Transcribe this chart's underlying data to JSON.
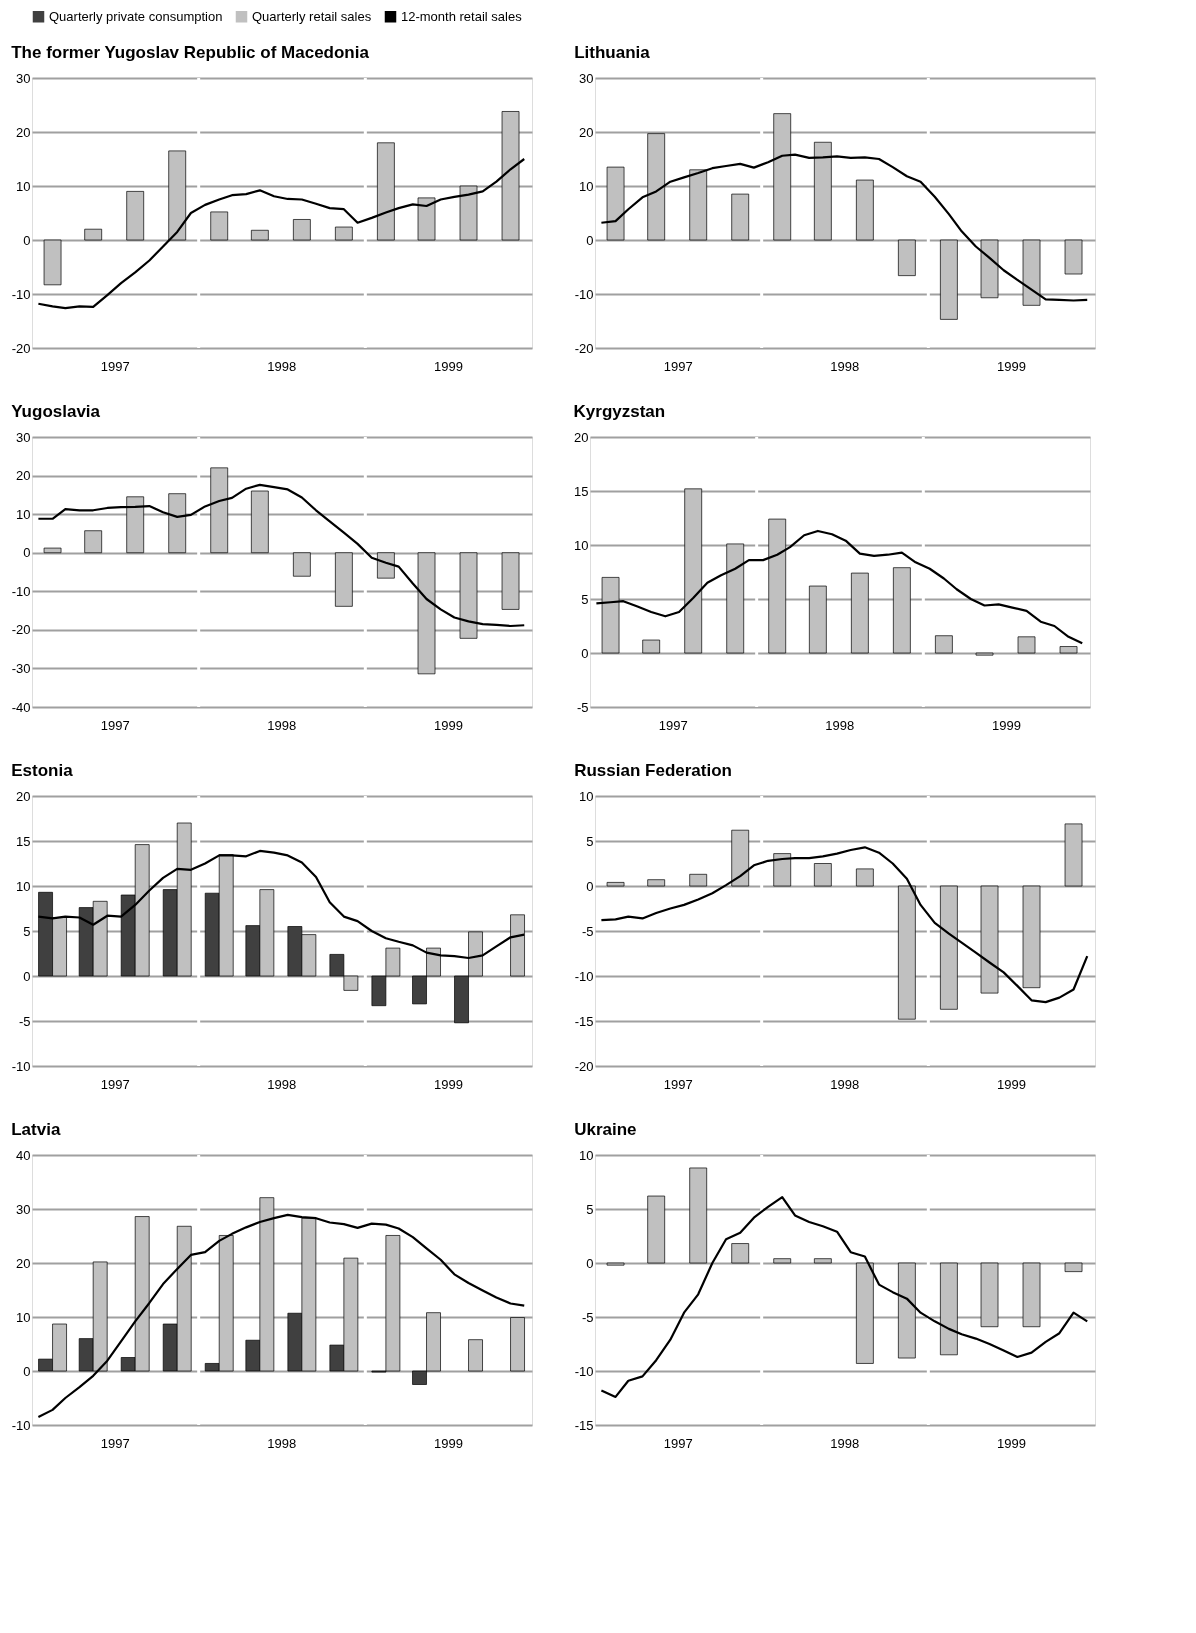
{
  "chart_data": [
    {
      "type": "bar",
      "title": "The former Yugoslav Republic of Macedonia",
      "legend": "top",
      "grid": "y",
      "xlim": [
        "1997-01-01",
        "2000-01-01"
      ],
      "xticks": [
        {
          "value": "1997-07-01",
          "label": "1997"
        },
        {
          "value": "1998-07-01",
          "label": "1998"
        },
        {
          "value": "1999-07-01",
          "label": "1999"
        }
      ],
      "ylim": [
        -20,
        30
      ],
      "yticks": [
        -20,
        -10,
        0,
        10,
        20,
        30
      ],
      "ref_lines": [
        {
          "axis": "x",
          "value": "1998-01-01",
          "color": "#ffffff"
        },
        {
          "axis": "x",
          "value": "1999-01-01",
          "color": "#ffffff"
        }
      ],
      "series": [
        {
          "name": "Quarterly retail sales",
          "color": "#c0c0c0",
          "x": [
            "1997-02-15",
            "1997-05-15",
            "1997-08-15",
            "1997-11-15",
            "1998-02-15",
            "1998-05-15",
            "1998-08-15",
            "1998-11-15",
            "1999-02-15",
            "1999-05-15",
            "1999-08-15",
            "1999-11-15"
          ],
          "values": [
            -8.3,
            2,
            9,
            16.5,
            5.2,
            1.8,
            3.8,
            2.4,
            18,
            7.8,
            10,
            23.8
          ]
        },
        {
          "name": "12-month retail sales",
          "type": "line",
          "color": "#000000",
          "x": [
            "1997-01-15",
            "1997-02-15",
            "1997-03-15",
            "1997-04-15",
            "1997-05-15",
            "1997-06-15",
            "1997-07-15",
            "1997-08-15",
            "1997-09-15",
            "1997-10-15",
            "1997-11-15",
            "1997-12-15",
            "1998-01-15",
            "1998-02-15",
            "1998-03-15",
            "1998-04-15",
            "1998-05-15",
            "1998-06-15",
            "1998-07-15",
            "1998-08-15",
            "1998-09-15",
            "1998-10-15",
            "1998-11-15",
            "1998-12-15",
            "1999-01-15",
            "1999-02-15",
            "1999-03-15",
            "1999-04-15",
            "1999-05-15",
            "1999-06-15",
            "1999-07-15",
            "1999-08-15",
            "1999-09-15",
            "1999-10-15",
            "1999-11-15",
            "1999-12-15"
          ],
          "values": [
            -11.8,
            -12.3,
            -12.6,
            -12.3,
            -12.4,
            -10.2,
            -8,
            -6,
            -3.8,
            -1.2,
            1.5,
            5,
            6.5,
            7.5,
            8.3,
            8.5,
            9.2,
            8.1,
            7.6,
            7.5,
            6.7,
            5.9,
            5.7,
            3.2,
            4.1,
            5.1,
            5.9,
            6.6,
            6.3,
            7.5,
            8,
            8.4,
            9,
            10.8,
            13.1,
            15
          ]
        }
      ]
    },
    {
      "type": "bar",
      "title": "Lithuania",
      "grid": "y",
      "xlim": [
        "1997-01-01",
        "2000-01-01"
      ],
      "xticks": [
        {
          "value": "1997-07-01",
          "label": "1997"
        },
        {
          "value": "1998-07-01",
          "label": "1998"
        },
        {
          "value": "1999-07-01",
          "label": "1999"
        }
      ],
      "ylim": [
        -20,
        30
      ],
      "yticks": [
        -20,
        -10,
        0,
        10,
        20,
        30
      ],
      "ref_lines": [
        {
          "axis": "x",
          "value": "1998-01-01",
          "color": "#ffffff"
        },
        {
          "axis": "x",
          "value": "1999-01-01",
          "color": "#ffffff"
        }
      ],
      "series": [
        {
          "name": "Quarterly retail sales",
          "color": "#c0c0c0",
          "x": [
            "1997-02-15",
            "1997-05-15",
            "1997-08-15",
            "1997-11-15",
            "1998-02-15",
            "1998-05-15",
            "1998-08-15",
            "1998-11-15",
            "1999-02-15",
            "1999-05-15",
            "1999-08-15",
            "1999-11-15"
          ],
          "values": [
            13.5,
            19.7,
            13,
            8.5,
            23.4,
            18.1,
            11.1,
            -6.6,
            -14.7,
            -10.7,
            -12.1,
            -6.3
          ]
        },
        {
          "name": "12-month retail sales",
          "type": "line",
          "color": "#000000",
          "x": [
            "1997-01-15",
            "1997-02-15",
            "1997-03-15",
            "1997-04-15",
            "1997-05-15",
            "1997-06-15",
            "1997-07-15",
            "1997-08-15",
            "1997-09-15",
            "1997-10-15",
            "1997-11-15",
            "1997-12-15",
            "1998-01-15",
            "1998-02-15",
            "1998-03-15",
            "1998-04-15",
            "1998-05-15",
            "1998-06-15",
            "1998-07-15",
            "1998-08-15",
            "1998-09-15",
            "1998-10-15",
            "1998-11-15",
            "1998-12-15",
            "1999-01-15",
            "1999-02-15",
            "1999-03-15",
            "1999-04-15",
            "1999-05-15",
            "1999-06-15",
            "1999-07-15",
            "1999-08-15",
            "1999-09-15",
            "1999-10-15",
            "1999-11-15",
            "1999-12-15"
          ],
          "values": [
            3.2,
            3.5,
            5.7,
            7.9,
            9,
            10.8,
            11.6,
            12.4,
            13.3,
            13.7,
            14.1,
            13.4,
            14.4,
            15.6,
            15.8,
            15.2,
            15.3,
            15.5,
            15.2,
            15.3,
            15,
            13.5,
            11.8,
            10.8,
            8,
            4.8,
            1.6,
            -1.2,
            -3.3,
            -5.6,
            -7.4,
            -9.2,
            -11,
            -11.1,
            -11.2,
            -11.1
          ]
        }
      ]
    },
    {
      "type": "bar",
      "title": "Yugoslavia",
      "grid": "y",
      "xlim": [
        "1997-01-01",
        "2000-01-01"
      ],
      "xticks": [
        {
          "value": "1997-07-01",
          "label": "1997"
        },
        {
          "value": "1998-07-01",
          "label": "1998"
        },
        {
          "value": "1999-07-01",
          "label": "1999"
        }
      ],
      "ylim": [
        -40,
        30
      ],
      "yticks": [
        -40,
        -30,
        -20,
        -10,
        0,
        10,
        20,
        30
      ],
      "ref_lines": [
        {
          "axis": "x",
          "value": "1998-01-01",
          "color": "#ffffff"
        },
        {
          "axis": "x",
          "value": "1999-01-01",
          "color": "#ffffff"
        }
      ],
      "series": [
        {
          "name": "Quarterly retail sales",
          "color": "#c0c0c0",
          "x": [
            "1997-02-15",
            "1997-05-15",
            "1997-08-15",
            "1997-11-15",
            "1998-02-15",
            "1998-05-15",
            "1998-08-15",
            "1998-11-15",
            "1999-02-15",
            "1999-05-15",
            "1999-08-15",
            "1999-11-15"
          ],
          "values": [
            1.2,
            5.7,
            14.5,
            15.3,
            22,
            16,
            -6.1,
            -13.9,
            -6.6,
            -31.4,
            -22.2,
            -14.7
          ]
        },
        {
          "name": "12-month retail sales",
          "type": "line",
          "color": "#000000",
          "x": [
            "1997-01-15",
            "1997-02-15",
            "1997-03-15",
            "1997-04-15",
            "1997-05-15",
            "1997-06-15",
            "1997-07-15",
            "1997-08-15",
            "1997-09-15",
            "1997-10-15",
            "1997-11-15",
            "1997-12-15",
            "1998-01-15",
            "1998-02-15",
            "1998-03-15",
            "1998-04-15",
            "1998-05-15",
            "1998-06-15",
            "1998-07-15",
            "1998-08-15",
            "1998-09-15",
            "1998-10-15",
            "1998-11-15",
            "1998-12-15",
            "1999-01-15",
            "1999-02-15",
            "1999-03-15",
            "1999-04-15",
            "1999-05-15",
            "1999-06-15",
            "1999-07-15",
            "1999-08-15",
            "1999-09-15",
            "1999-10-15",
            "1999-11-15",
            "1999-12-15"
          ],
          "values": [
            8.8,
            8.8,
            11.3,
            11,
            11,
            11.6,
            11.8,
            11.9,
            12.1,
            10.5,
            9.3,
            9.8,
            12,
            13.4,
            14.2,
            16.6,
            17.6,
            17,
            16.4,
            14.3,
            11,
            8.1,
            5.2,
            2.3,
            -1.3,
            -2.6,
            -3.6,
            -8,
            -12,
            -14.7,
            -16.8,
            -17.8,
            -18.5,
            -18.7,
            -19,
            -18.8
          ]
        }
      ]
    },
    {
      "type": "bar",
      "title": "Kyrgyzstan",
      "grid": "y",
      "xlim": [
        "1997-01-01",
        "2000-01-01"
      ],
      "xticks": [
        {
          "value": "1997-07-01",
          "label": "1997"
        },
        {
          "value": "1998-07-01",
          "label": "1998"
        },
        {
          "value": "1999-07-01",
          "label": "1999"
        }
      ],
      "ylim": [
        -5,
        20
      ],
      "yticks": [
        -5,
        0,
        5,
        10,
        15,
        20
      ],
      "ref_lines": [
        {
          "axis": "x",
          "value": "1998-01-01",
          "color": "#ffffff"
        },
        {
          "axis": "x",
          "value": "1999-01-01",
          "color": "#ffffff"
        }
      ],
      "series": [
        {
          "name": "Quarterly retail sales",
          "color": "#c0c0c0",
          "x": [
            "1997-02-15",
            "1997-05-15",
            "1997-08-15",
            "1997-11-15",
            "1998-02-15",
            "1998-05-15",
            "1998-08-15",
            "1998-11-15",
            "1999-02-15",
            "1999-05-15",
            "1999-08-15",
            "1999-11-15"
          ],
          "values": [
            7,
            1.2,
            15.2,
            10.1,
            12.4,
            6.2,
            7.4,
            7.9,
            1.6,
            -0.2,
            1.5,
            0.6
          ]
        },
        {
          "name": "12-month retail sales",
          "type": "line",
          "color": "#000000",
          "x": [
            "1997-01-15",
            "1997-02-15",
            "1997-03-15",
            "1997-04-15",
            "1997-05-15",
            "1997-06-15",
            "1997-07-15",
            "1997-08-15",
            "1997-09-15",
            "1997-10-15",
            "1997-11-15",
            "1997-12-15",
            "1998-01-15",
            "1998-02-15",
            "1998-03-15",
            "1998-04-15",
            "1998-05-15",
            "1998-06-15",
            "1998-07-15",
            "1998-08-15",
            "1998-09-15",
            "1998-10-15",
            "1998-11-15",
            "1998-12-15",
            "1999-01-15",
            "1999-02-15",
            "1999-03-15",
            "1999-04-15",
            "1999-05-15",
            "1999-06-15",
            "1999-07-15",
            "1999-08-15",
            "1999-09-15",
            "1999-10-15",
            "1999-11-15",
            "1999-12-15"
          ],
          "values": [
            4.6,
            4.7,
            4.8,
            4.3,
            3.8,
            3.4,
            3.8,
            5.1,
            6.5,
            7.2,
            7.8,
            8.6,
            8.6,
            9.1,
            9.8,
            10.9,
            11.3,
            11,
            10.4,
            9.2,
            9,
            9.1,
            9.3,
            8.4,
            7.8,
            6.9,
            5.9,
            5,
            4.4,
            4.5,
            4.2,
            3.9,
            2.9,
            2.5,
            1.5,
            0.9
          ]
        }
      ]
    },
    {
      "type": "bar",
      "title": "Estonia",
      "grid": "y",
      "xlim": [
        "1997-01-01",
        "2000-01-01"
      ],
      "xticks": [
        {
          "value": "1997-07-01",
          "label": "1997"
        },
        {
          "value": "1998-07-01",
          "label": "1998"
        },
        {
          "value": "1999-07-01",
          "label": "1999"
        }
      ],
      "ylim": [
        -10,
        20
      ],
      "yticks": [
        -10,
        -5,
        0,
        5,
        10,
        15,
        20
      ],
      "ref_lines": [
        {
          "axis": "x",
          "value": "1998-01-01",
          "color": "#ffffff"
        },
        {
          "axis": "x",
          "value": "1999-01-01",
          "color": "#ffffff"
        }
      ],
      "series": [
        {
          "name": "Quarterly private consumption",
          "color": "#404040",
          "x": [
            "1997-02-15",
            "1997-05-15",
            "1997-08-15",
            "1997-11-15",
            "1998-02-15",
            "1998-05-15",
            "1998-08-15",
            "1998-11-15",
            "1999-02-15",
            "1999-05-15",
            "1999-08-15"
          ],
          "values": [
            9.3,
            7.6,
            9,
            9.6,
            9.2,
            5.6,
            5.5,
            2.4,
            -3.3,
            -3.1,
            -5.2
          ]
        },
        {
          "name": "Quarterly retail sales",
          "color": "#c0c0c0",
          "x": [
            "1997-02-15",
            "1997-05-15",
            "1997-08-15",
            "1997-11-15",
            "1998-02-15",
            "1998-05-15",
            "1998-08-15",
            "1998-11-15",
            "1999-02-15",
            "1999-05-15",
            "1999-08-15",
            "1999-11-15"
          ],
          "values": [
            6.5,
            8.3,
            14.6,
            17,
            13.5,
            9.6,
            4.6,
            -1.6,
            3.1,
            3.1,
            4.9,
            6.8
          ]
        },
        {
          "name": "12-month retail sales",
          "type": "line",
          "color": "#000000",
          "x": [
            "1997-01-15",
            "1997-02-15",
            "1997-03-15",
            "1997-04-15",
            "1997-05-15",
            "1997-06-15",
            "1997-07-15",
            "1997-08-15",
            "1997-09-15",
            "1997-10-15",
            "1997-11-15",
            "1997-12-15",
            "1998-01-15",
            "1998-02-15",
            "1998-03-15",
            "1998-04-15",
            "1998-05-15",
            "1998-06-15",
            "1998-07-15",
            "1998-08-15",
            "1998-09-15",
            "1998-10-15",
            "1998-11-15",
            "1998-12-15",
            "1999-01-15",
            "1999-02-15",
            "1999-03-15",
            "1999-04-15",
            "1999-05-15",
            "1999-06-15",
            "1999-07-15",
            "1999-08-15",
            "1999-09-15",
            "1999-10-15",
            "1999-11-15",
            "1999-12-15"
          ],
          "values": [
            6.6,
            6.4,
            6.6,
            6.5,
            5.7,
            6.7,
            6.6,
            7.9,
            9.5,
            10.9,
            11.9,
            11.8,
            12.5,
            13.4,
            13.4,
            13.3,
            13.9,
            13.7,
            13.4,
            12.6,
            11,
            8.2,
            6.6,
            6.1,
            5,
            4.2,
            3.8,
            3.4,
            2.6,
            2.3,
            2.2,
            2,
            2.3,
            3.3,
            4.3,
            4.6
          ]
        }
      ]
    },
    {
      "type": "bar",
      "title": "Russian Federation",
      "grid": "y",
      "xlim": [
        "1997-01-01",
        "2000-01-01"
      ],
      "xticks": [
        {
          "value": "1997-07-01",
          "label": "1997"
        },
        {
          "value": "1998-07-01",
          "label": "1998"
        },
        {
          "value": "1999-07-01",
          "label": "1999"
        }
      ],
      "ylim": [
        -20,
        10
      ],
      "yticks": [
        -20,
        -15,
        -10,
        -5,
        0,
        5,
        10
      ],
      "ref_lines": [
        {
          "axis": "x",
          "value": "1998-01-01",
          "color": "#ffffff"
        },
        {
          "axis": "x",
          "value": "1999-01-01",
          "color": "#ffffff"
        }
      ],
      "series": [
        {
          "name": "Quarterly retail sales",
          "color": "#c0c0c0",
          "x": [
            "1997-02-15",
            "1997-05-15",
            "1997-08-15",
            "1997-11-15",
            "1998-02-15",
            "1998-05-15",
            "1998-08-15",
            "1998-11-15",
            "1999-02-15",
            "1999-05-15",
            "1999-08-15",
            "1999-11-15"
          ],
          "values": [
            0.4,
            0.7,
            1.3,
            6.2,
            3.6,
            2.5,
            1.9,
            -14.8,
            -13.7,
            -11.9,
            -11.3,
            6.9
          ]
        },
        {
          "name": "12-month retail sales",
          "type": "line",
          "color": "#000000",
          "x": [
            "1997-01-15",
            "1997-02-15",
            "1997-03-15",
            "1997-04-15",
            "1997-05-15",
            "1997-06-15",
            "1997-07-15",
            "1997-08-15",
            "1997-09-15",
            "1997-10-15",
            "1997-11-15",
            "1997-12-15",
            "1998-01-15",
            "1998-02-15",
            "1998-03-15",
            "1998-04-15",
            "1998-05-15",
            "1998-06-15",
            "1998-07-15",
            "1998-08-15",
            "1998-09-15",
            "1998-10-15",
            "1998-11-15",
            "1998-12-15",
            "1999-01-15",
            "1999-02-15",
            "1999-03-15",
            "1999-04-15",
            "1999-05-15",
            "1999-06-15",
            "1999-07-15",
            "1999-08-15",
            "1999-09-15",
            "1999-10-15",
            "1999-11-15",
            "1999-12-15"
          ],
          "values": [
            -3.8,
            -3.7,
            -3.4,
            -3.6,
            -3,
            -2.5,
            -2.1,
            -1.5,
            -0.8,
            0.1,
            1.1,
            2.3,
            2.8,
            3,
            3.1,
            3.1,
            3.3,
            3.6,
            4,
            4.3,
            3.7,
            2.5,
            0.8,
            -2.1,
            -4.1,
            -5.3,
            -6.3,
            -7.4,
            -8.5,
            -9.6,
            -11.1,
            -12.7,
            -12.9,
            -12.4,
            -11.5,
            -7.8
          ]
        }
      ]
    },
    {
      "type": "bar",
      "title": "Latvia",
      "grid": "y",
      "xlim": [
        "1997-01-01",
        "2000-01-01"
      ],
      "xticks": [
        {
          "value": "1997-07-01",
          "label": "1997"
        },
        {
          "value": "1998-07-01",
          "label": "1998"
        },
        {
          "value": "1999-07-01",
          "label": "1999"
        }
      ],
      "ylim": [
        -10,
        40
      ],
      "yticks": [
        -10,
        0,
        10,
        20,
        30,
        40
      ],
      "ref_lines": [
        {
          "axis": "x",
          "value": "1998-01-01",
          "color": "#ffffff"
        },
        {
          "axis": "x",
          "value": "1999-01-01",
          "color": "#ffffff"
        }
      ],
      "series": [
        {
          "name": "Quarterly private consumption",
          "color": "#404040",
          "x": [
            "1997-02-15",
            "1997-05-15",
            "1997-08-15",
            "1997-11-15",
            "1998-02-15",
            "1998-05-15",
            "1998-08-15",
            "1998-11-15",
            "1999-02-15",
            "1999-05-15"
          ],
          "values": [
            2.2,
            6,
            2.5,
            8.7,
            1.4,
            5.7,
            10.7,
            4.8,
            -0.2,
            -2.5
          ]
        },
        {
          "name": "Quarterly retail sales",
          "color": "#c0c0c0",
          "x": [
            "1997-02-15",
            "1997-05-15",
            "1997-08-15",
            "1997-11-15",
            "1998-02-15",
            "1998-05-15",
            "1998-08-15",
            "1998-11-15",
            "1999-02-15",
            "1999-05-15",
            "1999-08-15",
            "1999-11-15"
          ],
          "values": [
            8.7,
            20.2,
            28.6,
            26.8,
            25.1,
            32.1,
            28.3,
            20.9,
            25.1,
            10.8,
            5.8,
            9.9
          ]
        },
        {
          "name": "12-month retail sales",
          "type": "line",
          "color": "#000000",
          "x": [
            "1997-01-15",
            "1997-02-15",
            "1997-03-15",
            "1997-04-15",
            "1997-05-15",
            "1997-06-15",
            "1997-07-15",
            "1997-08-15",
            "1997-09-15",
            "1997-10-15",
            "1997-11-15",
            "1997-12-15",
            "1998-01-15",
            "1998-02-15",
            "1998-03-15",
            "1998-04-15",
            "1998-05-15",
            "1998-06-15",
            "1998-07-15",
            "1998-08-15",
            "1998-09-15",
            "1998-10-15",
            "1998-11-15",
            "1998-12-15",
            "1999-01-15",
            "1999-02-15",
            "1999-03-15",
            "1999-04-15",
            "1999-05-15",
            "1999-06-15",
            "1999-07-15",
            "1999-08-15",
            "1999-09-15",
            "1999-10-15",
            "1999-11-15",
            "1999-12-15"
          ],
          "values": [
            -8.5,
            -7.2,
            -5,
            -3,
            -0.9,
            1.9,
            5.5,
            9.2,
            12.6,
            16.1,
            18.9,
            21.5,
            22,
            24.1,
            25.4,
            26.6,
            27.6,
            28.3,
            28.9,
            28.5,
            28.3,
            27.5,
            27.2,
            26.5,
            27.3,
            27.1,
            26.4,
            24.8,
            22.7,
            20.6,
            17.9,
            16.3,
            14.9,
            13.6,
            12.5,
            12.1
          ]
        }
      ]
    },
    {
      "type": "bar",
      "title": "Ukraine",
      "grid": "y",
      "xlim": [
        "1997-01-01",
        "2000-01-01"
      ],
      "xticks": [
        {
          "value": "1997-07-01",
          "label": "1997"
        },
        {
          "value": "1998-07-01",
          "label": "1998"
        },
        {
          "value": "1999-07-01",
          "label": "1999"
        }
      ],
      "ylim": [
        -15,
        10
      ],
      "yticks": [
        -15,
        -10,
        -5,
        0,
        5,
        10
      ],
      "ref_lines": [
        {
          "axis": "x",
          "value": "1998-01-01",
          "color": "#ffffff"
        },
        {
          "axis": "x",
          "value": "1999-01-01",
          "color": "#ffffff"
        }
      ],
      "series": [
        {
          "name": "Quarterly retail sales",
          "color": "#c0c0c0",
          "x": [
            "1997-02-15",
            "1997-05-15",
            "1997-08-15",
            "1997-11-15",
            "1998-02-15",
            "1998-05-15",
            "1998-08-15",
            "1998-11-15",
            "1999-02-15",
            "1999-05-15",
            "1999-08-15",
            "1999-11-15"
          ],
          "values": [
            -0.2,
            6.2,
            8.8,
            1.8,
            0.4,
            0.4,
            -9.3,
            -8.8,
            -8.5,
            -5.9,
            -5.9,
            -0.8
          ]
        },
        {
          "name": "12-month retail sales",
          "type": "line",
          "color": "#000000",
          "x": [
            "1997-01-15",
            "1997-02-15",
            "1997-03-15",
            "1997-04-15",
            "1997-05-15",
            "1997-06-15",
            "1997-07-15",
            "1997-08-15",
            "1997-09-15",
            "1997-10-15",
            "1997-11-15",
            "1997-12-15",
            "1998-01-15",
            "1998-02-15",
            "1998-03-15",
            "1998-04-15",
            "1998-05-15",
            "1998-06-15",
            "1998-07-15",
            "1998-08-15",
            "1998-09-15",
            "1998-10-15",
            "1998-11-15",
            "1998-12-15",
            "1999-01-15",
            "1999-02-15",
            "1999-03-15",
            "1999-04-15",
            "1999-05-15",
            "1999-06-15",
            "1999-07-15",
            "1999-08-15",
            "1999-09-15",
            "1999-10-15",
            "1999-11-15",
            "1999-12-15"
          ],
          "values": [
            -11.8,
            -12.4,
            -10.9,
            -10.5,
            -9,
            -7.1,
            -4.6,
            -2.9,
            0,
            2.2,
            2.8,
            4.2,
            5.2,
            6.1,
            4.4,
            3.8,
            3.4,
            2.9,
            1,
            0.6,
            -2,
            -2.7,
            -3.3,
            -4.6,
            -5.4,
            -6.1,
            -6.6,
            -7,
            -7.5,
            -8.1,
            -8.7,
            -8.3,
            -7.3,
            -6.5,
            -4.6,
            -5.4
          ]
        }
      ]
    }
  ]
}
